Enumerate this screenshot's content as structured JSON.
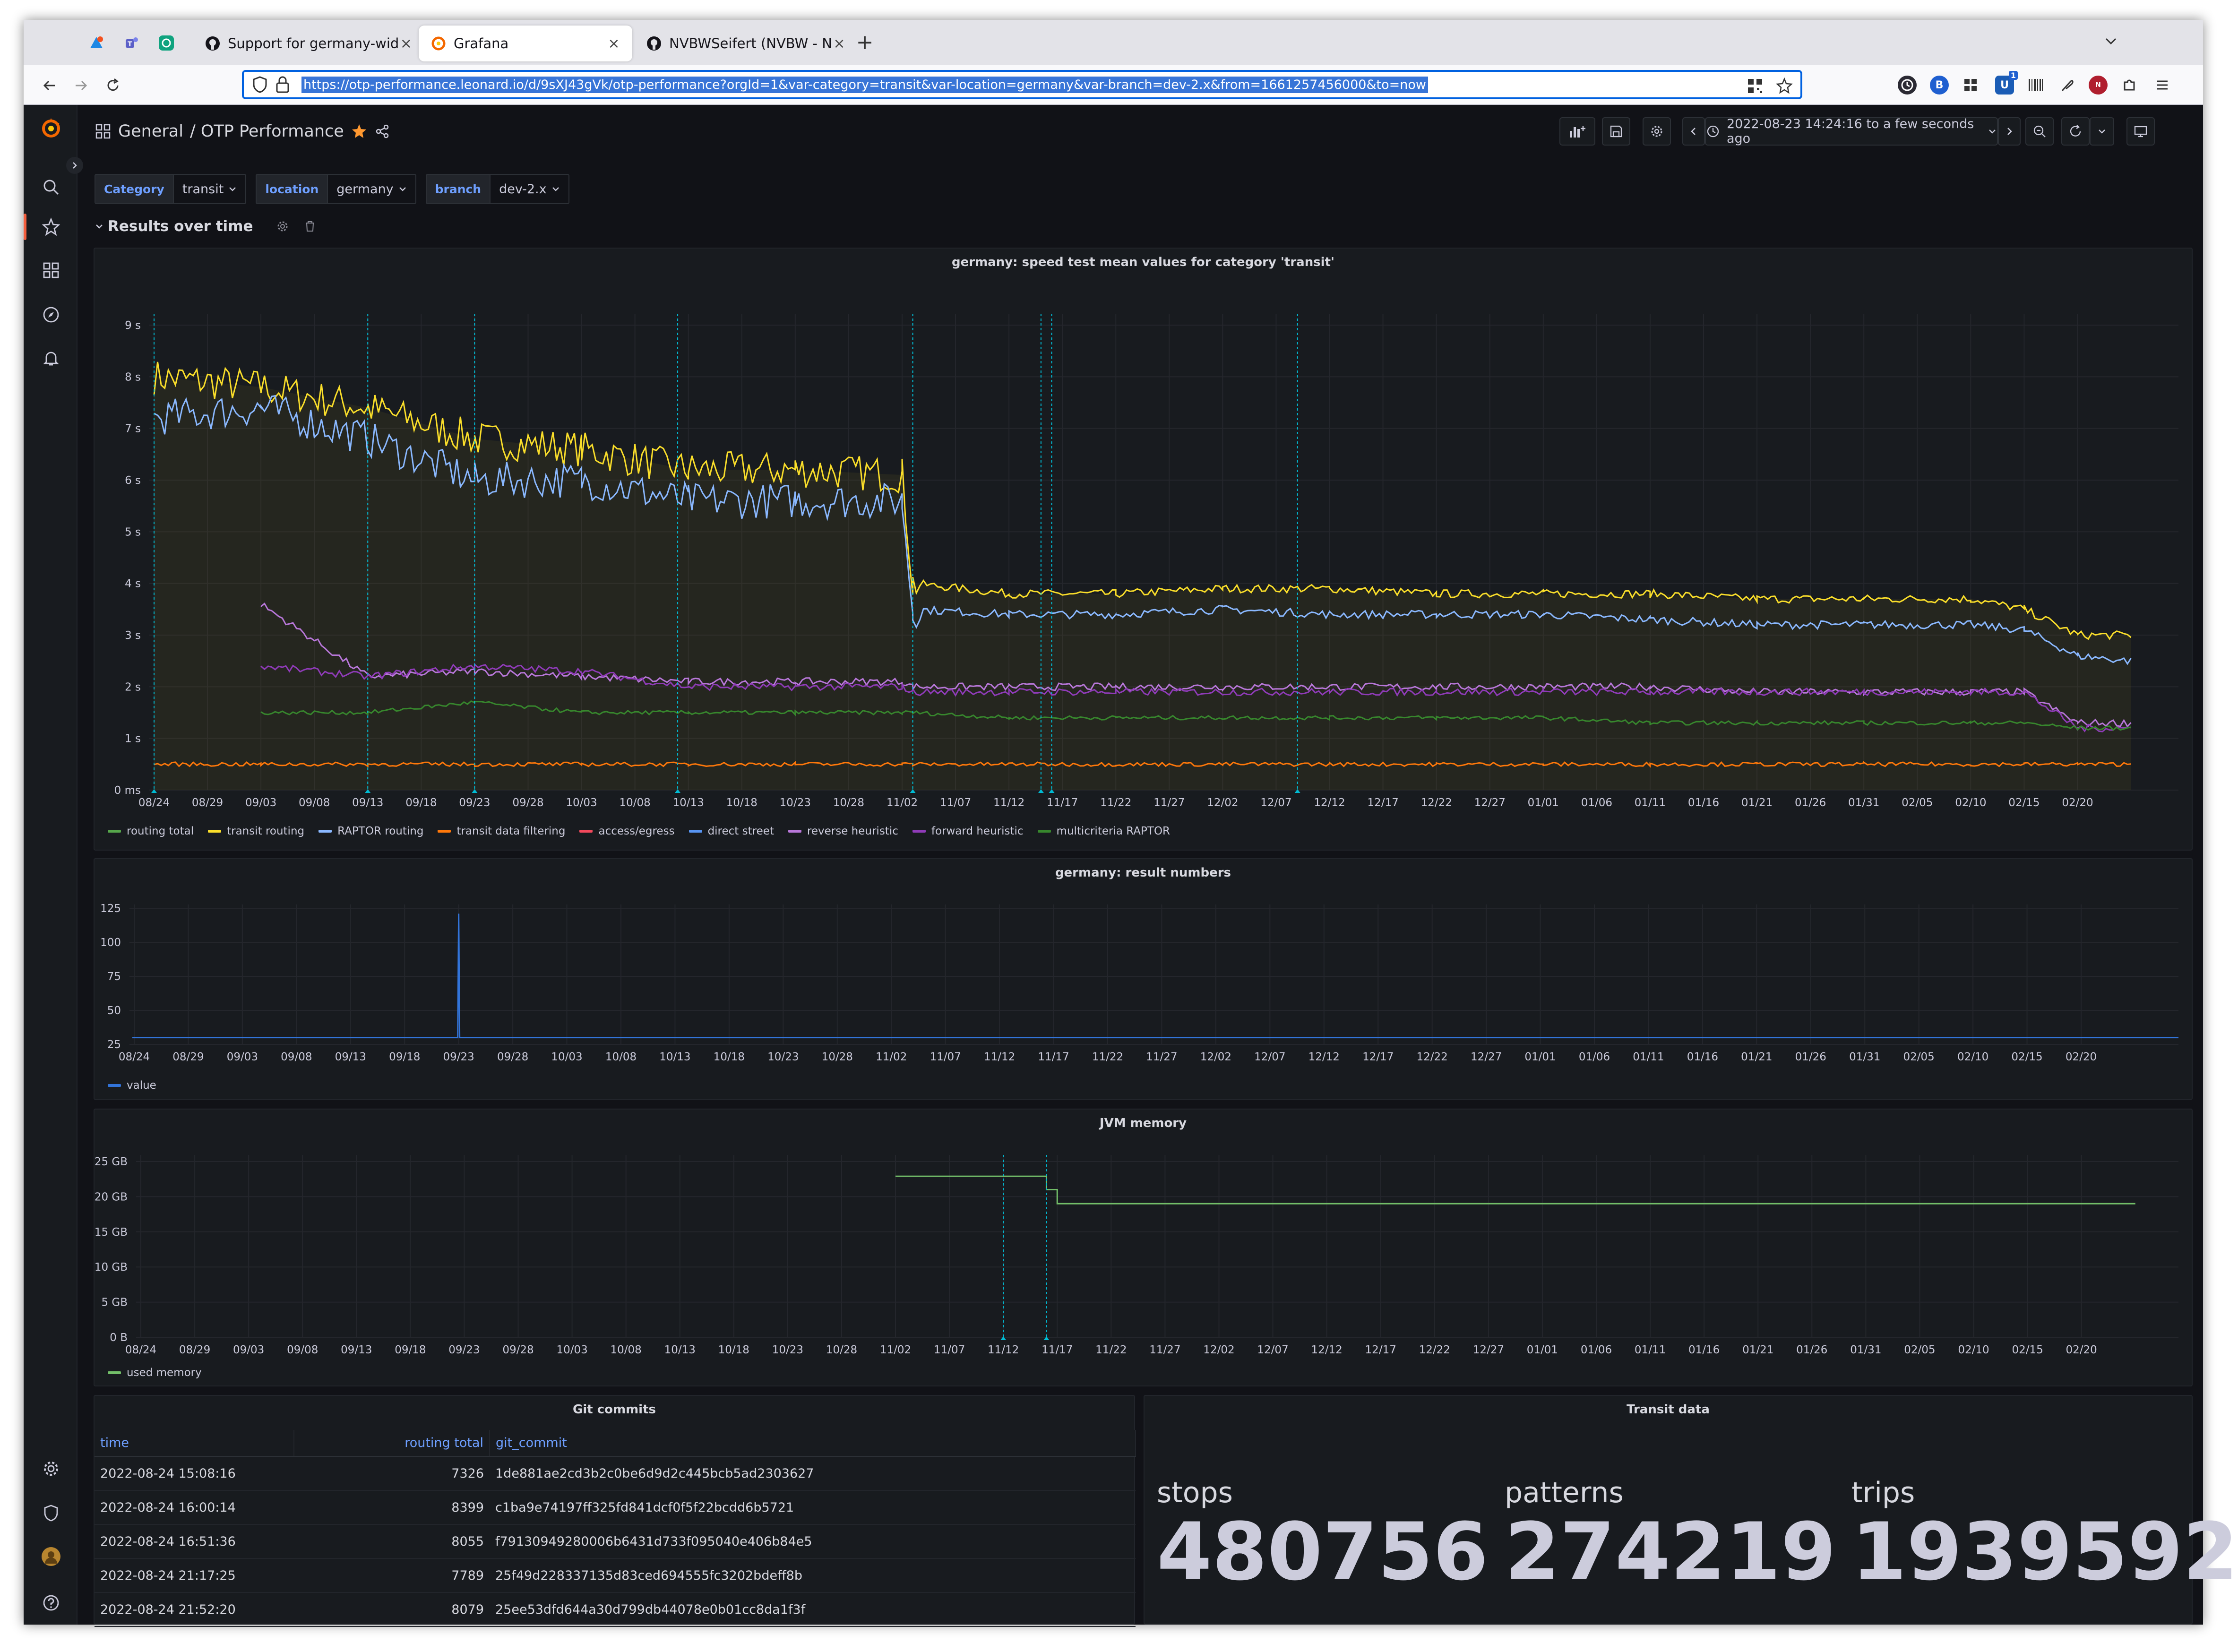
{
  "browser": {
    "tabs": [
      {
        "title": "Support for germany-wid",
        "active": false
      },
      {
        "title": "Grafana",
        "active": true
      },
      {
        "title": "NVBWSeifert (NVBW - N",
        "active": false
      }
    ],
    "url": "https://otp-performance.leonard.io/d/9sXJ43gVk/otp-performance?orgId=1&var-category=transit&var-location=germany&var-branch=dev-2.x&from=1661257456000&to=now",
    "extension_badge": "1"
  },
  "dashboard": {
    "folder": "General",
    "title": "/ OTP Performance",
    "time_range": "2022-08-23 14:24:16 to a few seconds ago"
  },
  "variables": [
    {
      "label": "Category",
      "value": "transit"
    },
    {
      "label": "location",
      "value": "germany"
    },
    {
      "label": "branch",
      "value": "dev-2.x"
    }
  ],
  "row": {
    "title": "Results over time"
  },
  "colors": {
    "routing_total": "#56a64b",
    "transit_routing": "#fade2a",
    "raptor_routing": "#8ab8ff",
    "transit_data_filtering": "#ff780a",
    "access_egress": "#f2495c",
    "direct_street": "#5794f2",
    "reverse_heuristic": "#b877d9",
    "forward_heuristic": "#8f3bb8",
    "multicriteria_raptor": "#37872d",
    "value": "#3274d9",
    "used_memory": "#73bf69",
    "annotation": "#00bcd4"
  },
  "x_ticks": [
    "08/24",
    "08/29",
    "09/03",
    "09/08",
    "09/13",
    "09/18",
    "09/23",
    "09/28",
    "10/03",
    "10/08",
    "10/13",
    "10/18",
    "10/23",
    "10/28",
    "11/02",
    "11/07",
    "11/12",
    "11/17",
    "11/22",
    "11/27",
    "12/02",
    "12/07",
    "12/12",
    "12/17",
    "12/22",
    "12/27",
    "01/01",
    "01/06",
    "01/11",
    "01/16",
    "01/21",
    "01/26",
    "01/31",
    "02/05",
    "02/10",
    "02/15",
    "02/20"
  ],
  "panels": {
    "speed": {
      "title": "germany: speed test mean values for category 'transit'",
      "y_ticks": [
        "0 ms",
        "1 s",
        "2 s",
        "3 s",
        "4 s",
        "5 s",
        "6 s",
        "7 s",
        "8 s",
        "9 s"
      ],
      "legend": [
        "routing total",
        "transit routing",
        "RAPTOR routing",
        "transit data filtering",
        "access/egress",
        "direct street",
        "reverse heuristic",
        "forward heuristic",
        "multicriteria RAPTOR"
      ]
    },
    "results": {
      "title": "germany: result numbers",
      "y_ticks": [
        "25",
        "50",
        "75",
        "100",
        "125"
      ],
      "legend": [
        "value"
      ]
    },
    "jvm": {
      "title": "JVM memory",
      "y_ticks": [
        "0 B",
        "5 GB",
        "10 GB",
        "15 GB",
        "20 GB",
        "25 GB"
      ],
      "legend": [
        "used memory"
      ]
    },
    "commits": {
      "title": "Git commits",
      "columns": [
        "time",
        "routing total",
        "git_commit"
      ],
      "rows": [
        [
          "2022-08-24 15:08:16",
          "7326",
          "1de881ae2cd3b2c0be6d9d2c445bcb5ad2303627"
        ],
        [
          "2022-08-24 16:00:14",
          "8399",
          "c1ba9e74197ff325fd841dcf0f5f22bcdd6b5721"
        ],
        [
          "2022-08-24 16:51:36",
          "8055",
          "f79130949280006b6431d733f095040e406b84e5"
        ],
        [
          "2022-08-24 21:17:25",
          "7789",
          "25f49d228337135d83ced694555fc3202bdeff8b"
        ],
        [
          "2022-08-24 21:52:20",
          "8079",
          "25ee53dfd644a30d799db44078e0b01cc8da1f3f"
        ]
      ]
    },
    "transit": {
      "title": "Transit data",
      "stats": [
        {
          "label": "stops",
          "value": "480756"
        },
        {
          "label": "patterns",
          "value": "274219"
        },
        {
          "label": "trips",
          "value": "1939592"
        }
      ]
    }
  },
  "chart_data": [
    {
      "type": "line",
      "title": "germany: speed test mean values for category 'transit'",
      "x": [
        "08/24",
        "09/03",
        "09/13",
        "09/23",
        "10/03",
        "10/13",
        "10/23",
        "11/02",
        "11/03",
        "11/12",
        "11/22",
        "12/02",
        "12/12",
        "12/22",
        "01/01",
        "01/11",
        "01/21",
        "01/31",
        "02/10",
        "02/15",
        "02/20",
        "02/25"
      ],
      "y_unit": "s",
      "ylim": [
        0,
        9
      ],
      "series": [
        {
          "name": "transit routing",
          "values": [
            8.0,
            7.8,
            7.4,
            6.8,
            6.6,
            6.2,
            6.2,
            6.1,
            4.0,
            3.8,
            3.8,
            3.9,
            3.9,
            3.8,
            3.8,
            3.8,
            3.7,
            3.7,
            3.7,
            3.5,
            3.0,
            3.0
          ]
        },
        {
          "name": "RAPTOR routing",
          "values": [
            7.2,
            7.4,
            6.8,
            6.0,
            6.0,
            5.6,
            5.6,
            5.6,
            3.5,
            3.4,
            3.4,
            3.5,
            3.4,
            3.4,
            3.4,
            3.3,
            3.2,
            3.2,
            3.2,
            3.1,
            2.6,
            2.5
          ]
        },
        {
          "name": "reverse heuristic",
          "values": [
            null,
            3.6,
            2.2,
            2.3,
            2.2,
            2.1,
            2.1,
            2.1,
            2.0,
            2.0,
            2.0,
            2.0,
            2.0,
            2.0,
            2.0,
            2.0,
            1.9,
            1.9,
            1.9,
            1.9,
            1.3,
            1.3
          ]
        },
        {
          "name": "forward heuristic",
          "values": [
            null,
            2.4,
            2.2,
            2.4,
            2.3,
            2.0,
            2.0,
            2.0,
            1.9,
            1.9,
            1.9,
            1.9,
            1.9,
            1.9,
            1.9,
            1.9,
            1.9,
            1.9,
            1.9,
            1.9,
            1.2,
            1.2
          ]
        },
        {
          "name": "multicriteria RAPTOR",
          "values": [
            null,
            1.5,
            1.5,
            1.7,
            1.5,
            1.5,
            1.5,
            1.5,
            1.5,
            1.4,
            1.4,
            1.4,
            1.4,
            1.4,
            1.4,
            1.3,
            1.3,
            1.3,
            1.3,
            1.3,
            1.2,
            1.2
          ]
        },
        {
          "name": "transit data filtering",
          "values": [
            0.5,
            0.5,
            0.5,
            0.5,
            0.5,
            0.5,
            0.5,
            0.5,
            0.5,
            0.5,
            0.5,
            0.5,
            0.5,
            0.5,
            0.5,
            0.5,
            0.5,
            0.5,
            0.5,
            0.5,
            0.5,
            0.5
          ]
        }
      ],
      "annotations": [
        "08/24",
        "09/13",
        "09/23",
        "10/12",
        "11/03",
        "11/15",
        "11/16",
        "12/09"
      ]
    },
    {
      "type": "line",
      "title": "germany: result numbers",
      "series": [
        {
          "name": "value",
          "baseline": 30,
          "spike": {
            "x": "09/23",
            "y": 121
          }
        }
      ],
      "ylim": [
        25,
        125
      ]
    },
    {
      "type": "line",
      "title": "JVM memory",
      "series": [
        {
          "name": "used memory",
          "x": [
            "11/02",
            "11/15",
            "11/16",
            "11/17",
            "02/25"
          ],
          "values_gb": [
            22.9,
            22.9,
            21.0,
            19.0,
            19.0
          ]
        }
      ],
      "ylim": [
        0,
        25
      ],
      "annotations": [
        "11/12",
        "11/16"
      ]
    }
  ]
}
